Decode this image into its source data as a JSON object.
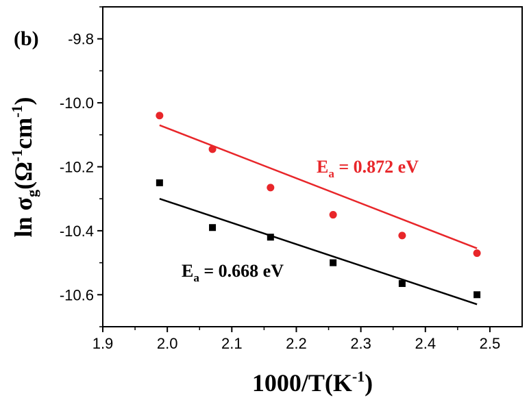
{
  "chart_data": {
    "type": "scatter",
    "panel_label": "(b)",
    "xlabel": "1000/T(K",
    "xlabel_sup": "-1",
    "xlabel_end": ")",
    "ylabel_prefix": "ln σ",
    "ylabel_sub": "g",
    "ylabel_open": "(Ω",
    "ylabel_sup1": "-1",
    "ylabel_mid": "cm",
    "ylabel_sup2": "-1",
    "ylabel_close": ")",
    "xlim": [
      1.9,
      2.55
    ],
    "ylim": [
      -10.7,
      -9.7
    ],
    "xticks": [
      1.9,
      2.0,
      2.1,
      2.2,
      2.3,
      2.4,
      2.5
    ],
    "xtick_labels": [
      "1.9",
      "2.0",
      "2.1",
      "2.2",
      "2.3",
      "2.4",
      "2.5"
    ],
    "yticks": [
      -10.6,
      -10.4,
      -10.2,
      -10.0,
      -9.8
    ],
    "ytick_labels": [
      "-10.6",
      "-10.4",
      "-10.2",
      "-10.0",
      "-9.8"
    ],
    "grid": false,
    "series": [
      {
        "color": "#e8262a",
        "marker": "circle",
        "x": [
          1.988,
          2.07,
          2.16,
          2.257,
          2.364,
          2.48
        ],
        "y": [
          -10.04,
          -10.145,
          -10.265,
          -10.35,
          -10.415,
          -10.47
        ],
        "fit": {
          "x": [
            1.988,
            2.48
          ],
          "y": [
            -10.07,
            -10.455
          ]
        },
        "annotation_main": "E",
        "annotation_sub": "a",
        "annotation_rest": " = 0.872 eV"
      },
      {
        "color": "#000000",
        "marker": "square",
        "x": [
          1.988,
          2.07,
          2.16,
          2.257,
          2.364,
          2.48
        ],
        "y": [
          -10.25,
          -10.39,
          -10.42,
          -10.5,
          -10.565,
          -10.6
        ],
        "fit": {
          "x": [
            1.988,
            2.48
          ],
          "y": [
            -10.3,
            -10.63
          ]
        },
        "annotation_main": "E",
        "annotation_sub": "a",
        "annotation_rest": " = 0.668 eV"
      }
    ]
  }
}
